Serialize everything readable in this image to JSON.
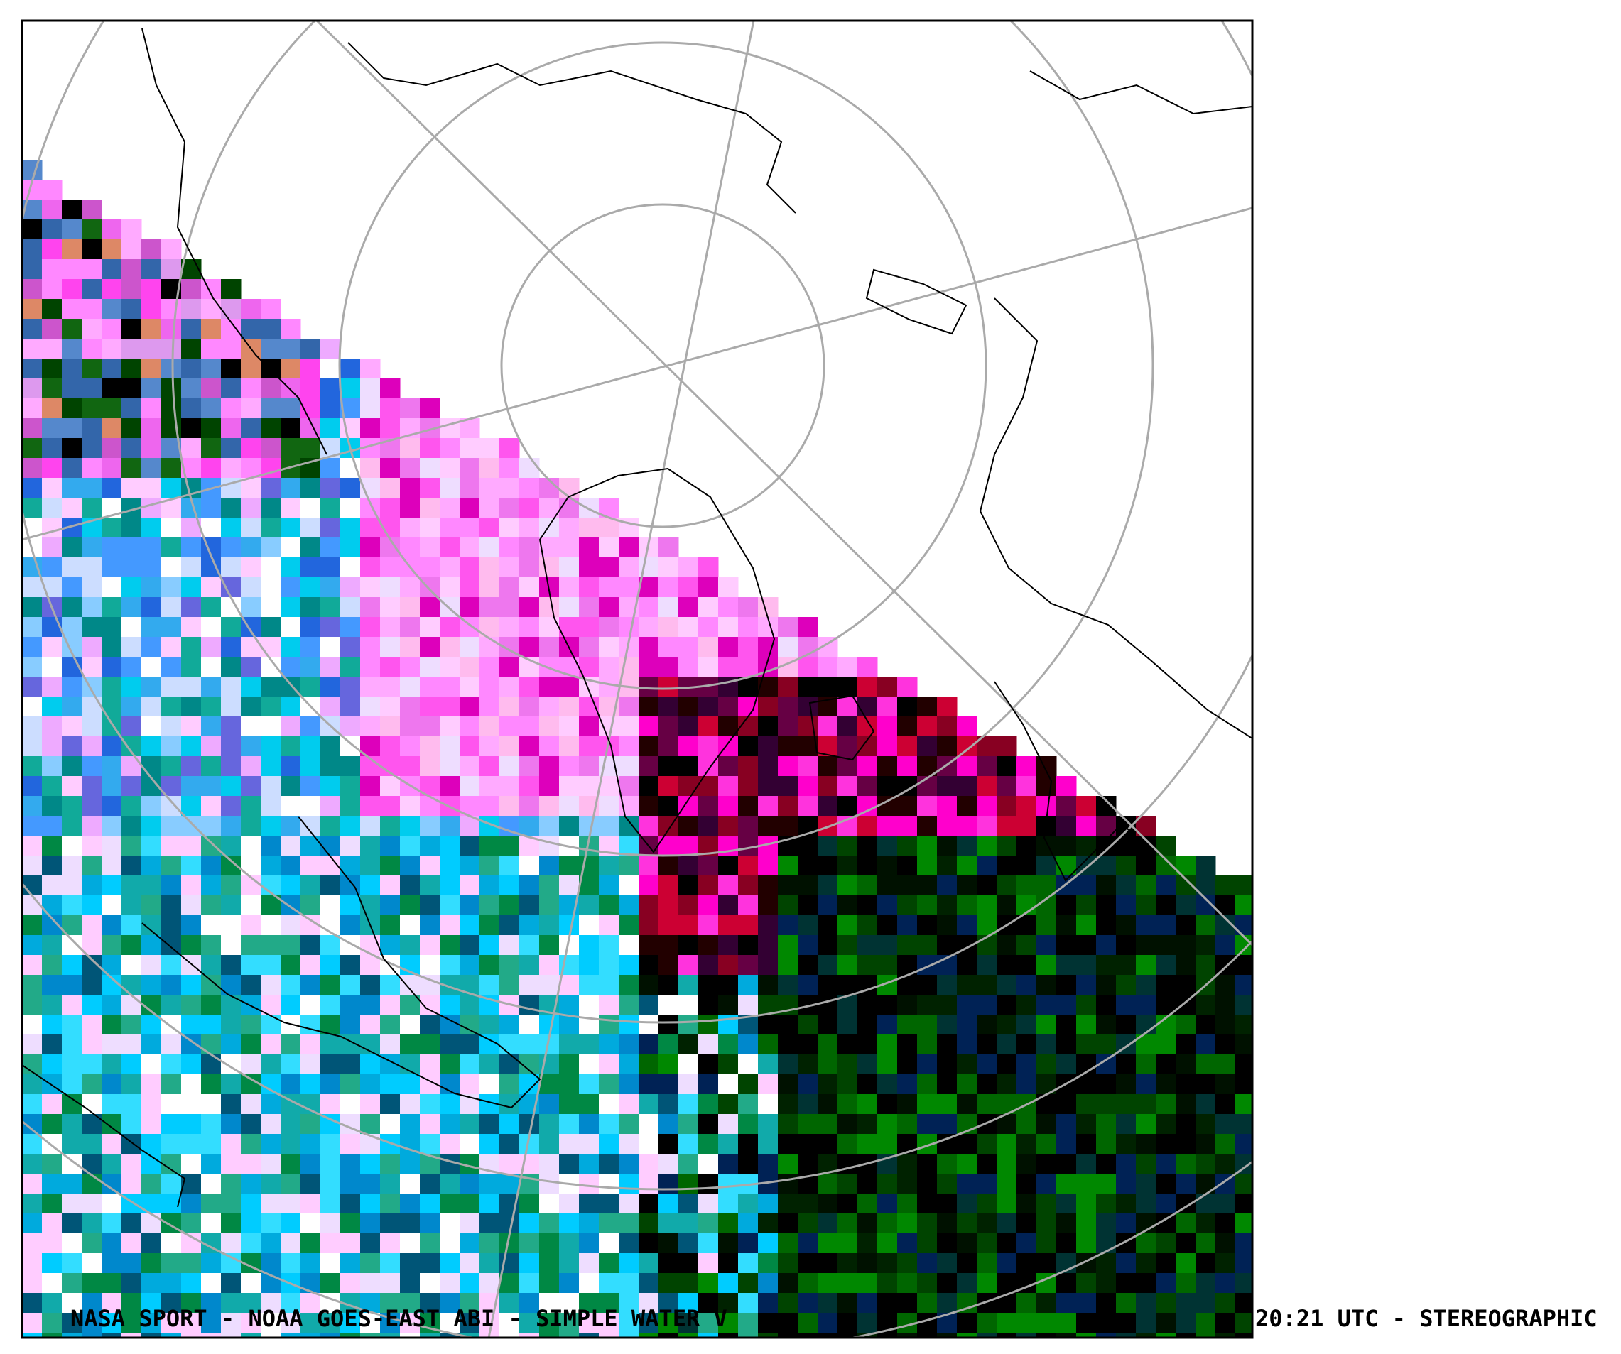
{
  "footer": {
    "left": "NASA SPORT  -  NOAA GOES-EAST ABI  -  SIMPLE WATER V",
    "right": "20:21 UTC - STEREOGRAPHIC"
  }
}
